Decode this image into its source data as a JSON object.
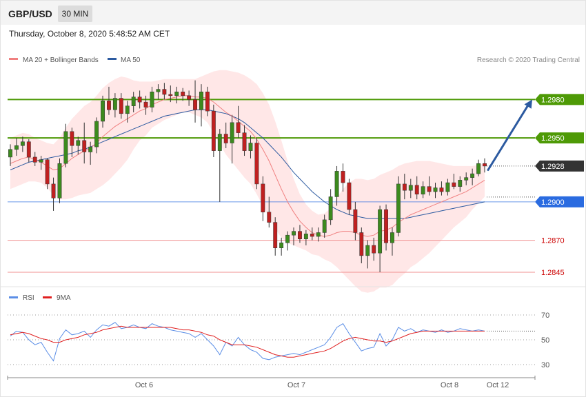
{
  "header": {
    "pair": "GBP/USD",
    "timeframe": "30 MIN",
    "datetime": "Thursday, October 8, 2020 5:48:52 AM CET"
  },
  "legend": {
    "ma20_label": "MA 20 + Bollinger Bands",
    "ma50_label": "MA 50",
    "ma20_color": "#f08080",
    "ma50_color": "#2c5aa0",
    "bands_fill": "#ffe4e4"
  },
  "credit": "Research © 2020 Trading Central",
  "rsi_legend": {
    "rsi_label": "RSI",
    "ma_label": "9MA",
    "rsi_color": "#5b8ee6",
    "ma_color": "#e02020"
  },
  "chart_data": [
    {
      "type": "candlestick",
      "title": "GBP/USD",
      "timeframe": "30 MIN",
      "ylim": [
        1.2838,
        1.3005
      ],
      "x_tick_labels": [
        "Oct 6",
        "Oct 7",
        "Oct 8",
        "Oct 12"
      ],
      "series": [
        {
          "name": "MA 20 + Bollinger Bands"
        },
        {
          "name": "MA 50"
        }
      ],
      "key_levels": [
        {
          "label": "1.2980",
          "value": 1.298,
          "color": "#4e9a06",
          "kind": "resistance"
        },
        {
          "label": "1.2950",
          "value": 1.295,
          "color": "#4e9a06",
          "kind": "resistance"
        },
        {
          "label": "1.2928",
          "value": 1.2928,
          "color": "#333333",
          "kind": "last"
        },
        {
          "label": "1.2900",
          "value": 1.29,
          "color": "#2a6be0",
          "kind": "pivot"
        },
        {
          "label": "1.2870",
          "value": 1.287,
          "color": "#cc0000",
          "kind": "support"
        },
        {
          "label": "1.2845",
          "value": 1.2845,
          "color": "#cc0000",
          "kind": "support"
        }
      ],
      "forecast_arrow": {
        "from": 1.2925,
        "to": 1.298,
        "direction": "up"
      },
      "candles": [
        [
          1.2935,
          1.2945,
          1.2928,
          1.2941
        ],
        [
          1.2941,
          1.295,
          1.2936,
          1.2944
        ],
        [
          1.2944,
          1.2951,
          1.2939,
          1.2947
        ],
        [
          1.2947,
          1.2949,
          1.2931,
          1.2935
        ],
        [
          1.2935,
          1.2939,
          1.2928,
          1.2931
        ],
        [
          1.2931,
          1.2936,
          1.2925,
          1.2933
        ],
        [
          1.2933,
          1.2934,
          1.291,
          1.2914
        ],
        [
          1.2914,
          1.2919,
          1.2893,
          1.2903
        ],
        [
          1.2903,
          1.2934,
          1.2899,
          1.293
        ],
        [
          1.293,
          1.2961,
          1.2927,
          1.2955
        ],
        [
          1.2955,
          1.2958,
          1.2935,
          1.2944
        ],
        [
          1.2944,
          1.2951,
          1.2937,
          1.2948
        ],
        [
          1.2948,
          1.2962,
          1.293,
          1.2939
        ],
        [
          1.2939,
          1.2947,
          1.2929,
          1.2943
        ],
        [
          1.2943,
          1.2966,
          1.2938,
          1.2963
        ],
        [
          1.2963,
          1.2983,
          1.2958,
          1.2979
        ],
        [
          1.2979,
          1.299,
          1.2968,
          1.2972
        ],
        [
          1.2972,
          1.2985,
          1.2966,
          1.2981
        ],
        [
          1.2981,
          1.2985,
          1.2965,
          1.2969
        ],
        [
          1.2969,
          1.2979,
          1.2962,
          1.2975
        ],
        [
          1.2975,
          1.2986,
          1.297,
          1.2982
        ],
        [
          1.2982,
          1.2987,
          1.2973,
          1.2978
        ],
        [
          1.2978,
          1.2983,
          1.2968,
          1.2974
        ],
        [
          1.2974,
          1.299,
          1.297,
          1.2986
        ],
        [
          1.2986,
          1.2992,
          1.298,
          1.2988
        ],
        [
          1.2988,
          1.2993,
          1.298,
          1.2984
        ],
        [
          1.2984,
          1.2991,
          1.2978,
          1.2983
        ],
        [
          1.2983,
          1.299,
          1.2977,
          1.2986
        ],
        [
          1.2986,
          1.2989,
          1.2979,
          1.2983
        ],
        [
          1.2983,
          1.2987,
          1.2975,
          1.298
        ],
        [
          1.298,
          1.2995,
          1.2962,
          1.2972
        ],
        [
          1.2972,
          1.2992,
          1.2959,
          1.2986
        ],
        [
          1.2986,
          1.299,
          1.2967,
          1.2971
        ],
        [
          1.2971,
          1.2976,
          1.2935,
          1.294
        ],
        [
          1.294,
          1.2957,
          1.29,
          1.2953
        ],
        [
          1.2953,
          1.2962,
          1.2942,
          1.2946
        ],
        [
          1.2946,
          1.2968,
          1.293,
          1.2962
        ],
        [
          1.2962,
          1.2975,
          1.295,
          1.2954
        ],
        [
          1.2954,
          1.296,
          1.2936,
          1.294
        ],
        [
          1.294,
          1.2952,
          1.2934,
          1.2946
        ],
        [
          1.2946,
          1.295,
          1.291,
          1.2914
        ],
        [
          1.2914,
          1.292,
          1.2885,
          1.2892
        ],
        [
          1.2892,
          1.2904,
          1.288,
          1.2884
        ],
        [
          1.2884,
          1.2888,
          1.2858,
          1.2864
        ],
        [
          1.2864,
          1.2872,
          1.2858,
          1.2868
        ],
        [
          1.2868,
          1.2877,
          1.2862,
          1.2874
        ],
        [
          1.2874,
          1.288,
          1.2866,
          1.2877
        ],
        [
          1.2877,
          1.2882,
          1.2868,
          1.2871
        ],
        [
          1.2871,
          1.2878,
          1.2866,
          1.2875
        ],
        [
          1.2875,
          1.288,
          1.287,
          1.2873
        ],
        [
          1.2873,
          1.288,
          1.2869,
          1.2876
        ],
        [
          1.2876,
          1.289,
          1.2872,
          1.2886
        ],
        [
          1.2886,
          1.291,
          1.2882,
          1.2904
        ],
        [
          1.2904,
          1.2928,
          1.2897,
          1.2924
        ],
        [
          1.2924,
          1.293,
          1.2908,
          1.2915
        ],
        [
          1.2915,
          1.2918,
          1.289,
          1.2894
        ],
        [
          1.2894,
          1.29,
          1.287,
          1.2876
        ],
        [
          1.2876,
          1.288,
          1.2852,
          1.2858
        ],
        [
          1.2858,
          1.287,
          1.2848,
          1.2866
        ],
        [
          1.2866,
          1.2872,
          1.2854,
          1.286
        ],
        [
          1.286,
          1.2897,
          1.2845,
          1.2894
        ],
        [
          1.2894,
          1.2898,
          1.2862,
          1.2868
        ],
        [
          1.2868,
          1.288,
          1.2858,
          1.2876
        ],
        [
          1.2876,
          1.292,
          1.2873,
          1.2914
        ],
        [
          1.2914,
          1.2922,
          1.2902,
          1.2909
        ],
        [
          1.2909,
          1.2918,
          1.2903,
          1.2913
        ],
        [
          1.2913,
          1.292,
          1.2902,
          1.2906
        ],
        [
          1.2906,
          1.2916,
          1.2903,
          1.2912
        ],
        [
          1.2912,
          1.292,
          1.2905,
          1.2908
        ],
        [
          1.2908,
          1.2915,
          1.2903,
          1.2911
        ],
        [
          1.2911,
          1.2916,
          1.2905,
          1.2908
        ],
        [
          1.2908,
          1.2918,
          1.2905,
          1.2915
        ],
        [
          1.2915,
          1.2922,
          1.291,
          1.2912
        ],
        [
          1.2912,
          1.292,
          1.2908,
          1.2917
        ],
        [
          1.2917,
          1.2923,
          1.2913,
          1.2919
        ],
        [
          1.2919,
          1.2926,
          1.2913,
          1.2922
        ],
        [
          1.2922,
          1.2933,
          1.292,
          1.293
        ],
        [
          1.293,
          1.2934,
          1.2923,
          1.2928
        ]
      ],
      "ma20": [
        1.293,
        1.2932,
        1.2934,
        1.2935,
        1.2933,
        1.2931,
        1.2928,
        1.2925,
        1.2926,
        1.293,
        1.2934,
        1.2937,
        1.294,
        1.2942,
        1.2946,
        1.2951,
        1.2955,
        1.2959,
        1.2962,
        1.2965,
        1.2968,
        1.2971,
        1.2973,
        1.2976,
        1.2978,
        1.298,
        1.2981,
        1.2982,
        1.2983,
        1.2983,
        1.2982,
        1.2982,
        1.2981,
        1.2978,
        1.2974,
        1.297,
        1.2967,
        1.2963,
        1.2959,
        1.2955,
        1.2949,
        1.2941,
        1.2932,
        1.2921,
        1.291,
        1.29,
        1.2892,
        1.2885,
        1.288,
        1.2876,
        1.2874,
        1.2873,
        1.2874,
        1.2876,
        1.2877,
        1.2877,
        1.2876,
        1.2874,
        1.2873,
        1.2874,
        1.2877,
        1.2878,
        1.288,
        1.2884,
        1.2887,
        1.289,
        1.2892,
        1.2894,
        1.2896,
        1.2898,
        1.29,
        1.2902,
        1.2904,
        1.2906,
        1.2908,
        1.2911,
        1.2914,
        1.2917
      ],
      "ma50": [
        1.2925,
        1.2927,
        1.2929,
        1.2931,
        1.2932,
        1.2933,
        1.2934,
        1.2935,
        1.2936,
        1.2937,
        1.2938,
        1.294,
        1.2941,
        1.2943,
        1.2945,
        1.2947,
        1.2949,
        1.2951,
        1.2953,
        1.2955,
        1.2957,
        1.2959,
        1.2961,
        1.2963,
        1.2965,
        1.2967,
        1.2968,
        1.2969,
        1.297,
        1.2971,
        1.2972,
        1.2972,
        1.2972,
        1.2971,
        1.297,
        1.2969,
        1.2967,
        1.2965,
        1.2962,
        1.2958,
        1.2954,
        1.295,
        1.2945,
        1.294,
        1.2935,
        1.2929,
        1.2923,
        1.2918,
        1.2913,
        1.2908,
        1.2904,
        1.29,
        1.2897,
        1.2894,
        1.2892,
        1.289,
        1.2889,
        1.2888,
        1.2887,
        1.2887,
        1.2887,
        1.2887,
        1.2887,
        1.2887,
        1.2887,
        1.2888,
        1.2889,
        1.289,
        1.2891,
        1.2892,
        1.2893,
        1.2894,
        1.2895,
        1.2896,
        1.2897,
        1.2898,
        1.2899,
        1.29
      ],
      "bb_upper": [
        1.295,
        1.2952,
        1.2954,
        1.2953,
        1.295,
        1.2948,
        1.2946,
        1.2945,
        1.295,
        1.2958,
        1.2965,
        1.297,
        1.2975,
        1.2978,
        1.2983,
        1.2989,
        1.2993,
        1.2996,
        1.2998,
        1.2997,
        1.2995,
        1.2994,
        1.2994,
        1.2994,
        1.2995,
        1.2996,
        1.2996,
        1.2996,
        1.2996,
        1.2996,
        1.2996,
        1.2998,
        1.3,
        1.3002,
        1.3003,
        1.3003,
        1.3002,
        1.3001,
        1.2999,
        1.2996,
        1.2992,
        1.2985,
        1.2976,
        1.2963,
        1.2948,
        1.2932,
        1.2918,
        1.2906,
        1.2898,
        1.2893,
        1.289,
        1.2891,
        1.2895,
        1.2903,
        1.291,
        1.2915,
        1.2918,
        1.2918,
        1.2917,
        1.2918,
        1.2921,
        1.2923,
        1.2925,
        1.2928,
        1.293,
        1.2931,
        1.2932,
        1.2932,
        1.2932,
        1.2931,
        1.293,
        1.2929,
        1.2928,
        1.2928,
        1.2928,
        1.2928,
        1.2929,
        1.293
      ],
      "bb_lower": [
        1.291,
        1.2912,
        1.2914,
        1.2916,
        1.2916,
        1.2915,
        1.2911,
        1.2905,
        1.2902,
        1.2902,
        1.2903,
        1.2905,
        1.2906,
        1.2907,
        1.291,
        1.2913,
        1.2917,
        1.2922,
        1.2927,
        1.2933,
        1.2941,
        1.2948,
        1.2952,
        1.2958,
        1.2961,
        1.2964,
        1.2966,
        1.2968,
        1.297,
        1.297,
        1.2968,
        1.2966,
        1.2962,
        1.2954,
        1.2945,
        1.2937,
        1.2931,
        1.2925,
        1.2919,
        1.2914,
        1.2906,
        1.2897,
        1.2888,
        1.2879,
        1.2872,
        1.2868,
        1.2866,
        1.2864,
        1.2862,
        1.2859,
        1.2858,
        1.2855,
        1.2853,
        1.2849,
        1.2844,
        1.2839,
        1.2834,
        1.283,
        1.2829,
        1.283,
        1.2833,
        1.2833,
        1.2835,
        1.284,
        1.2844,
        1.2849,
        1.2852,
        1.2856,
        1.286,
        1.2865,
        1.287,
        1.2875,
        1.288,
        1.2884,
        1.2888,
        1.2894,
        1.2899,
        1.2904
      ]
    },
    {
      "type": "line",
      "title": "RSI",
      "ylim": [
        25,
        75
      ],
      "y_ticks": [
        "70",
        "50",
        "30"
      ],
      "series": [
        {
          "name": "RSI",
          "values": [
            53,
            57,
            56,
            50,
            46,
            48,
            40,
            33,
            51,
            58,
            54,
            55,
            57,
            52,
            58,
            62,
            61,
            64,
            59,
            60,
            62,
            60,
            59,
            63,
            61,
            60,
            58,
            57,
            56,
            55,
            52,
            55,
            50,
            45,
            38,
            48,
            45,
            52,
            46,
            42,
            40,
            35,
            34,
            36,
            37,
            38,
            39,
            38,
            40,
            42,
            44,
            46,
            52,
            60,
            63,
            55,
            48,
            41,
            43,
            44,
            55,
            45,
            50,
            60,
            57,
            59,
            56,
            58,
            57,
            56,
            58,
            56,
            57,
            59,
            58,
            57,
            58,
            57
          ]
        },
        {
          "name": "9MA",
          "values": [
            54,
            55,
            56,
            55,
            53,
            51,
            50,
            48,
            48,
            50,
            51,
            52,
            54,
            55,
            56,
            58,
            59,
            60,
            61,
            60,
            60,
            60,
            60,
            60,
            60,
            60,
            60,
            59,
            58,
            58,
            57,
            56,
            54,
            53,
            50,
            48,
            46,
            46,
            46,
            45,
            44,
            42,
            40,
            38,
            37,
            36,
            36,
            37,
            38,
            39,
            40,
            41,
            43,
            46,
            49,
            51,
            52,
            51,
            50,
            49,
            49,
            48,
            49,
            51,
            53,
            55,
            56,
            57,
            57,
            57,
            57,
            57,
            57,
            57,
            57,
            57,
            57,
            57
          ]
        }
      ],
      "reference_lines": [
        70,
        50,
        30
      ]
    }
  ]
}
